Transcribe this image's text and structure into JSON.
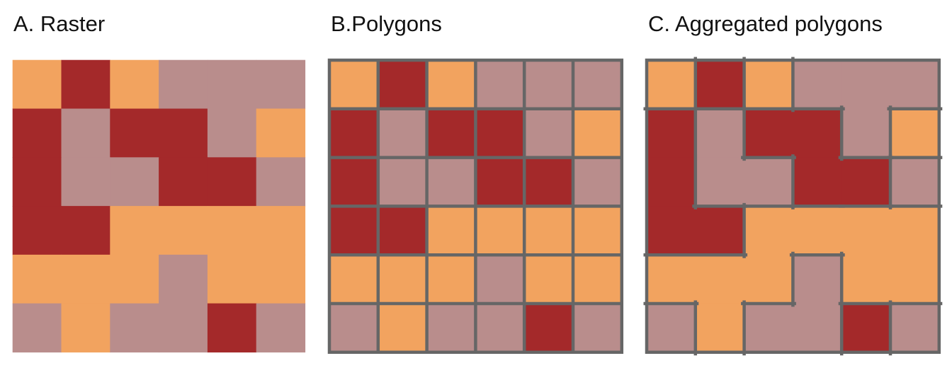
{
  "panels": {
    "a": {
      "title": "A. Raster"
    },
    "b": {
      "title": "B.Polygons"
    },
    "c": {
      "title": "C. Aggregated polygons"
    }
  },
  "colors": {
    "O": "#f2a35f",
    "R": "#a4292a",
    "P": "#b98d8c",
    "border": "#666666",
    "background": "#ffffff"
  },
  "legend_codes": {
    "O": "orange",
    "R": "dark-red",
    "P": "mauve"
  },
  "grid": {
    "rows": 6,
    "cols": 6,
    "cells": [
      [
        "O",
        "R",
        "O",
        "P",
        "P",
        "P"
      ],
      [
        "R",
        "P",
        "R",
        "R",
        "P",
        "O"
      ],
      [
        "R",
        "P",
        "P",
        "R",
        "R",
        "P"
      ],
      [
        "R",
        "R",
        "O",
        "O",
        "O",
        "O"
      ],
      [
        "O",
        "O",
        "O",
        "P",
        "O",
        "O"
      ],
      [
        "P",
        "O",
        "P",
        "P",
        "R",
        "P"
      ]
    ]
  }
}
